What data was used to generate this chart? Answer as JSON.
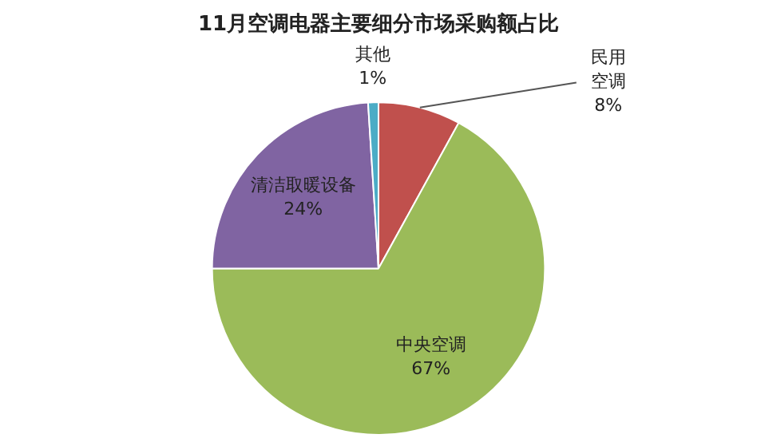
{
  "chart_data": {
    "type": "pie",
    "title": "11月空调电器主要细分市场采购额占比",
    "categories": [
      "民用空调",
      "中央空调",
      "清洁取暖设备",
      "其他"
    ],
    "values": [
      8,
      67,
      24,
      1
    ],
    "value_labels": [
      "8%",
      "67%",
      "24%",
      "1%"
    ],
    "colors": [
      "#c0504d",
      "#9bbb59",
      "#8064a2",
      "#4bacc6"
    ],
    "legend": false
  }
}
